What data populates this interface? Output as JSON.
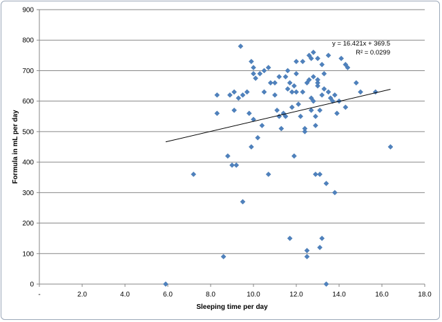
{
  "chart_data": {
    "type": "scatter",
    "title": "",
    "xlabel": "Sleeping time per day",
    "ylabel": "Formula in mL per day",
    "xlim": [
      0,
      18
    ],
    "ylim": [
      0,
      900
    ],
    "x_ticks": [
      0,
      2,
      4,
      6,
      8,
      10,
      12,
      14,
      16,
      18
    ],
    "x_tick_labels": [
      "-",
      "2.0",
      "4.0",
      "6.0",
      "8.0",
      "10.0",
      "12.0",
      "14.0",
      "16.0",
      "18.0"
    ],
    "y_ticks": [
      0,
      100,
      200,
      300,
      400,
      500,
      600,
      700,
      800,
      900
    ],
    "y_tick_labels": [
      "0",
      "100",
      "200",
      "300",
      "400",
      "500",
      "600",
      "700",
      "800",
      "900"
    ],
    "grid": "horizontal",
    "marker_color": "#4f81bd",
    "trendline": {
      "slope": 16.421,
      "intercept": 369.5,
      "x_start": 5.9,
      "x_end": 16.4,
      "equation": "y = 16.421x + 369.5",
      "r_squared_label": "R² = 0.0299",
      "color": "#000000"
    },
    "points": [
      [
        5.9,
        0
      ],
      [
        7.2,
        360
      ],
      [
        8.3,
        620
      ],
      [
        8.3,
        560
      ],
      [
        8.6,
        90
      ],
      [
        8.8,
        420
      ],
      [
        8.9,
        620
      ],
      [
        9.0,
        390
      ],
      [
        9.1,
        570
      ],
      [
        9.1,
        630
      ],
      [
        9.2,
        390
      ],
      [
        9.3,
        610
      ],
      [
        9.4,
        780
      ],
      [
        9.5,
        270
      ],
      [
        9.5,
        620
      ],
      [
        9.7,
        630
      ],
      [
        9.8,
        560
      ],
      [
        9.9,
        450
      ],
      [
        9.9,
        730
      ],
      [
        10.0,
        710
      ],
      [
        10.0,
        540
      ],
      [
        10.0,
        690
      ],
      [
        10.1,
        675
      ],
      [
        10.2,
        480
      ],
      [
        10.3,
        690
      ],
      [
        10.4,
        520
      ],
      [
        10.5,
        630
      ],
      [
        10.5,
        700
      ],
      [
        10.7,
        360
      ],
      [
        10.7,
        710
      ],
      [
        10.8,
        660
      ],
      [
        11.0,
        620
      ],
      [
        11.0,
        660
      ],
      [
        11.1,
        570
      ],
      [
        11.2,
        680
      ],
      [
        11.2,
        550
      ],
      [
        11.3,
        510
      ],
      [
        11.4,
        560
      ],
      [
        11.5,
        550
      ],
      [
        11.5,
        680
      ],
      [
        11.6,
        640
      ],
      [
        11.6,
        700
      ],
      [
        11.7,
        150
      ],
      [
        11.7,
        660
      ],
      [
        11.8,
        580
      ],
      [
        11.8,
        630
      ],
      [
        11.9,
        420
      ],
      [
        11.9,
        650
      ],
      [
        12.0,
        630
      ],
      [
        12.0,
        730
      ],
      [
        12.0,
        690
      ],
      [
        12.1,
        590
      ],
      [
        12.2,
        550
      ],
      [
        12.3,
        730
      ],
      [
        12.3,
        630
      ],
      [
        12.4,
        500
      ],
      [
        12.4,
        510
      ],
      [
        12.5,
        660
      ],
      [
        12.5,
        110
      ],
      [
        12.5,
        90
      ],
      [
        12.6,
        750
      ],
      [
        12.6,
        670
      ],
      [
        12.7,
        740
      ],
      [
        12.7,
        570
      ],
      [
        12.7,
        610
      ],
      [
        12.8,
        760
      ],
      [
        12.8,
        680
      ],
      [
        12.8,
        600
      ],
      [
        12.9,
        550
      ],
      [
        12.9,
        520
      ],
      [
        12.9,
        360
      ],
      [
        13.0,
        650
      ],
      [
        13.0,
        740
      ],
      [
        13.0,
        660
      ],
      [
        13.0,
        670
      ],
      [
        13.1,
        570
      ],
      [
        13.1,
        120
      ],
      [
        13.1,
        360
      ],
      [
        13.2,
        150
      ],
      [
        13.2,
        620
      ],
      [
        13.2,
        720
      ],
      [
        13.3,
        640
      ],
      [
        13.3,
        690
      ],
      [
        13.4,
        330
      ],
      [
        13.4,
        0
      ],
      [
        13.5,
        750
      ],
      [
        13.5,
        630
      ],
      [
        13.6,
        610
      ],
      [
        13.7,
        600
      ],
      [
        13.8,
        300
      ],
      [
        13.8,
        620
      ],
      [
        13.9,
        560
      ],
      [
        14.0,
        600
      ],
      [
        14.1,
        740
      ],
      [
        14.3,
        580
      ],
      [
        14.3,
        720
      ],
      [
        14.4,
        710
      ],
      [
        14.8,
        660
      ],
      [
        15.0,
        630
      ],
      [
        15.7,
        630
      ],
      [
        16.4,
        450
      ]
    ]
  }
}
